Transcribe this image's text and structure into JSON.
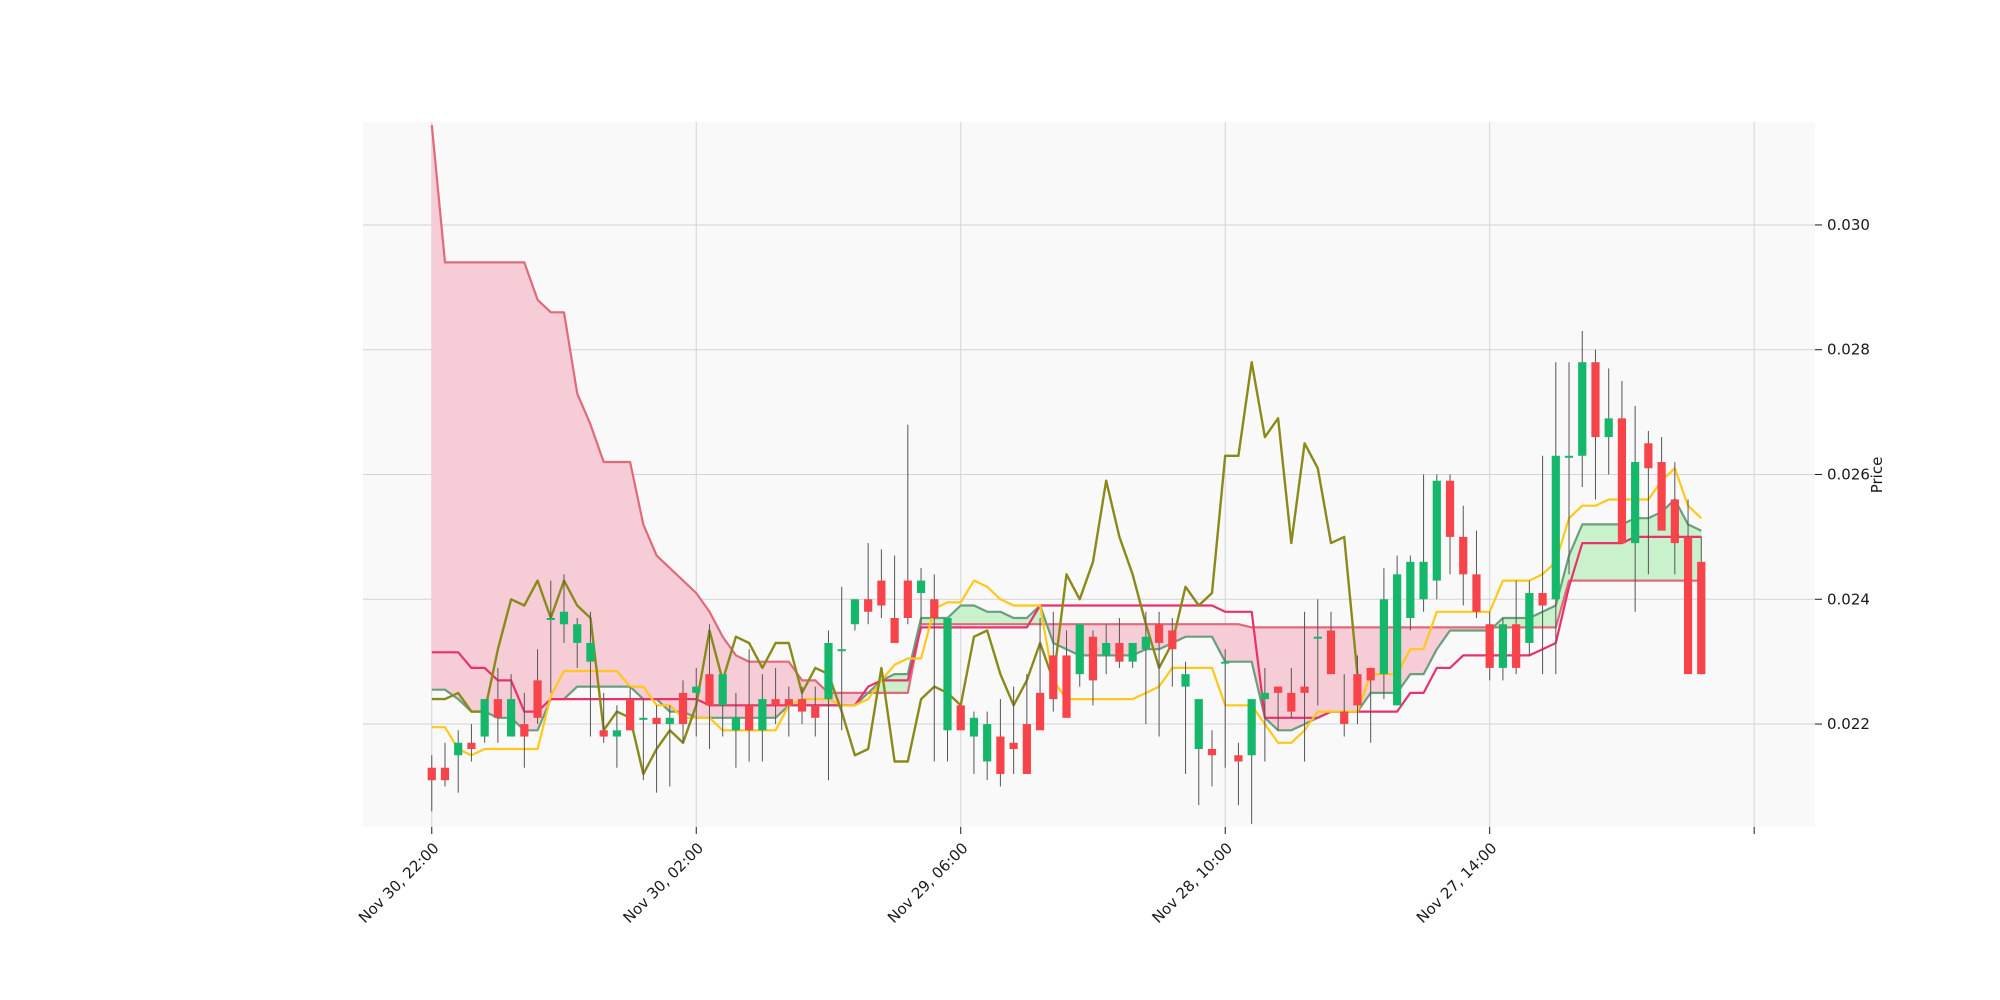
{
  "chart_data": {
    "type": "candlestick",
    "ylabel": "Price",
    "xlabel": "",
    "ylim": [
      0.02035,
      0.03165
    ],
    "y_ticks": [
      0.022,
      0.024,
      0.026,
      0.028,
      0.03
    ],
    "y_tick_labels": [
      "0.022",
      "0.024",
      "0.026",
      "0.028",
      "0.030"
    ],
    "x_ticks": [
      0,
      20,
      40,
      60,
      80
    ],
    "x_tick_labels": [
      "Nov 30, 22:00",
      "Nov 30, 02:00",
      "Nov 29, 06:00",
      "Nov 28, 10:00",
      "Nov 27, 14:00"
    ],
    "xlim": [
      -5.2,
      104.6
    ],
    "grid": true,
    "colors": {
      "background": "#f9f9f9",
      "grid": "#d4d4d4",
      "up": "#15b86a",
      "down": "#f7434a",
      "cloud_bull_fill": "#c9f2cc",
      "cloud_bear_fill": "#f6cdd6",
      "span_a": "#6a9e7c",
      "span_b": "#e06a7a",
      "tenkan": "#ffc81a",
      "kijun": "#e8326a",
      "chikou": "#8a8a1a"
    },
    "opens": [
      0.0213,
      0.0213,
      0.0215,
      0.0217,
      0.0218,
      0.0224,
      0.0218,
      0.022,
      0.0227,
      0.0237,
      0.0236,
      0.0233,
      0.023,
      0.0219,
      0.0218,
      0.0224,
      0.0221,
      0.0221,
      0.022,
      0.0225,
      0.0225,
      0.0228,
      0.0223,
      0.0219,
      0.0223,
      0.0219,
      0.0224,
      0.0224,
      0.0224,
      0.0223,
      0.0224,
      0.0232,
      0.0236,
      0.024,
      0.0243,
      0.0237,
      0.0243,
      0.0241,
      0.024,
      0.0219,
      0.0223,
      0.0218,
      0.0214,
      0.0218,
      0.0217,
      0.022,
      0.0225,
      0.0231,
      0.0231,
      0.0228,
      0.0234,
      0.0231,
      0.0233,
      0.023,
      0.0232,
      0.0236,
      0.0235,
      0.0226,
      0.0216,
      0.0216,
      0.023,
      0.0215,
      0.0215,
      0.0224,
      0.0226,
      0.0225,
      0.0226,
      0.0234,
      0.0235,
      0.0222,
      0.0228,
      0.0229,
      0.0228,
      0.0223,
      0.0237,
      0.024,
      0.0243,
      0.0259,
      0.025,
      0.0244,
      0.0236,
      0.0229,
      0.0236,
      0.0233,
      0.0241,
      0.024,
      0.0263,
      0.0263,
      0.0278,
      0.0266,
      0.0269,
      0.0249,
      0.0265,
      0.0262,
      0.0256,
      0.025,
      0.0246
    ],
    "highs": [
      0.0215,
      0.0217,
      0.0219,
      0.022,
      0.0224,
      0.0229,
      0.0228,
      0.0225,
      0.0232,
      0.0243,
      0.0244,
      0.0237,
      0.0238,
      0.0225,
      0.0223,
      0.0226,
      0.0224,
      0.0223,
      0.0223,
      0.0227,
      0.0229,
      0.0236,
      0.0226,
      0.0225,
      0.0232,
      0.0228,
      0.0229,
      0.0226,
      0.0226,
      0.0226,
      0.0235,
      0.0242,
      0.024,
      0.0249,
      0.0248,
      0.0247,
      0.0268,
      0.0245,
      0.0244,
      0.0228,
      0.0222,
      0.0222,
      0.0222,
      0.0224,
      0.0226,
      0.0228,
      0.0237,
      0.0238,
      0.0235,
      0.0234,
      0.0235,
      0.0236,
      0.0237,
      0.0232,
      0.0238,
      0.0238,
      0.0237,
      0.023,
      0.0222,
      0.0219,
      0.0232,
      0.0217,
      0.0219,
      0.0229,
      0.0226,
      0.0229,
      0.0238,
      0.024,
      0.0238,
      0.0228,
      0.0231,
      0.0229,
      0.0245,
      0.0247,
      0.0247,
      0.026,
      0.026,
      0.026,
      0.0255,
      0.0251,
      0.0238,
      0.0237,
      0.0243,
      0.0243,
      0.0263,
      0.0278,
      0.0278,
      0.0283,
      0.028,
      0.0277,
      0.0275,
      0.0271,
      0.0267,
      0.0266,
      0.0262,
      0.0256,
      0.025
    ],
    "lows": [
      0.0206,
      0.021,
      0.0209,
      0.0214,
      0.0217,
      0.0217,
      0.0218,
      0.0213,
      0.022,
      0.0225,
      0.0233,
      0.0229,
      0.0218,
      0.0217,
      0.0213,
      0.0219,
      0.0211,
      0.0209,
      0.021,
      0.0217,
      0.0218,
      0.0216,
      0.0218,
      0.0213,
      0.0214,
      0.0214,
      0.022,
      0.0218,
      0.022,
      0.0218,
      0.0211,
      0.0219,
      0.0235,
      0.0236,
      0.0237,
      0.0236,
      0.0236,
      0.0236,
      0.0214,
      0.0214,
      0.022,
      0.0212,
      0.0211,
      0.021,
      0.0212,
      0.0212,
      0.0222,
      0.0222,
      0.0226,
      0.0226,
      0.0223,
      0.0228,
      0.0229,
      0.0229,
      0.022,
      0.0218,
      0.0226,
      0.0212,
      0.0207,
      0.021,
      0.0213,
      0.0207,
      0.0204,
      0.0214,
      0.0219,
      0.0221,
      0.0214,
      0.0223,
      0.023,
      0.0218,
      0.022,
      0.0217,
      0.0224,
      0.0223,
      0.0235,
      0.0238,
      0.024,
      0.0244,
      0.0239,
      0.0237,
      0.0227,
      0.0227,
      0.0228,
      0.0231,
      0.0228,
      0.0228,
      0.0244,
      0.0258,
      0.0256,
      0.026,
      0.0264,
      0.0238,
      0.0244,
      0.0256,
      0.0244,
      0.024,
      0.0228
    ],
    "closes": [
      0.0211,
      0.0211,
      0.0217,
      0.0216,
      0.0224,
      0.0221,
      0.0224,
      0.0218,
      0.0221,
      0.0237,
      0.0238,
      0.0236,
      0.0233,
      0.0218,
      0.0219,
      0.0219,
      0.0221,
      0.022,
      0.0221,
      0.022,
      0.0226,
      0.0223,
      0.0228,
      0.0221,
      0.0219,
      0.0224,
      0.0223,
      0.0223,
      0.0222,
      0.0221,
      0.0233,
      0.0232,
      0.024,
      0.0238,
      0.0239,
      0.0233,
      0.0237,
      0.0243,
      0.0237,
      0.0237,
      0.0219,
      0.0221,
      0.022,
      0.0212,
      0.0216,
      0.0212,
      0.0219,
      0.0224,
      0.0221,
      0.0236,
      0.0227,
      0.0233,
      0.023,
      0.0233,
      0.0234,
      0.0233,
      0.0232,
      0.0228,
      0.0224,
      0.0215,
      0.023,
      0.0214,
      0.0224,
      0.0225,
      0.0225,
      0.0222,
      0.0225,
      0.0234,
      0.0228,
      0.022,
      0.0223,
      0.0227,
      0.024,
      0.0244,
      0.0246,
      0.0246,
      0.0259,
      0.025,
      0.0244,
      0.0238,
      0.0229,
      0.0236,
      0.0229,
      0.0241,
      0.0239,
      0.0263,
      0.0263,
      0.0278,
      0.0266,
      0.0269,
      0.0249,
      0.0262,
      0.0261,
      0.0251,
      0.0249,
      0.0228,
      0.0228
    ],
    "tenkan": [
      0.02195,
      0.02195,
      0.0216,
      0.0215,
      0.0216,
      0.0216,
      0.0216,
      0.0216,
      0.0216,
      0.02245,
      0.02285,
      0.02285,
      0.02285,
      0.02285,
      0.02285,
      0.0226,
      0.0226,
      0.0223,
      0.0223,
      0.0221,
      0.0221,
      0.0221,
      0.0219,
      0.0219,
      0.0219,
      0.0219,
      0.0219,
      0.0223,
      0.0224,
      0.0224,
      0.0224,
      0.0223,
      0.0223,
      0.0224,
      0.0227,
      0.02295,
      0.02305,
      0.02305,
      0.02385,
      0.02395,
      0.02395,
      0.0243,
      0.0242,
      0.024,
      0.0239,
      0.0239,
      0.0239,
      0.0227,
      0.0224,
      0.0224,
      0.0224,
      0.0224,
      0.0224,
      0.0224,
      0.0225,
      0.0226,
      0.0229,
      0.0229,
      0.0229,
      0.0229,
      0.0223,
      0.0223,
      0.0223,
      0.022,
      0.0217,
      0.0217,
      0.0219,
      0.0222,
      0.0222,
      0.0222,
      0.0222,
      0.0228,
      0.0228,
      0.0228,
      0.0232,
      0.0232,
      0.0238,
      0.0238,
      0.0238,
      0.0238,
      0.0238,
      0.0243,
      0.0243,
      0.0243,
      0.0244,
      0.0246,
      0.0253,
      0.0255,
      0.0255,
      0.0256,
      0.0256,
      0.0256,
      0.0256,
      0.0259,
      0.0261,
      0.0255,
      0.0253
    ],
    "kijun": [
      0.02315,
      0.02315,
      0.02315,
      0.0229,
      0.0229,
      0.0227,
      0.0227,
      0.0222,
      0.0222,
      0.0224,
      0.0224,
      0.0224,
      0.0224,
      0.0224,
      0.0224,
      0.0224,
      0.0224,
      0.0224,
      0.0224,
      0.0224,
      0.0224,
      0.0223,
      0.0223,
      0.0223,
      0.0223,
      0.0223,
      0.0223,
      0.0223,
      0.0223,
      0.0223,
      0.0223,
      0.0223,
      0.0223,
      0.0226,
      0.0227,
      0.0227,
      0.0227,
      0.02355,
      0.02355,
      0.02355,
      0.02355,
      0.02355,
      0.02355,
      0.02355,
      0.02355,
      0.02355,
      0.0239,
      0.0239,
      0.0239,
      0.0239,
      0.0239,
      0.0239,
      0.0239,
      0.0239,
      0.0239,
      0.0239,
      0.0239,
      0.0239,
      0.0239,
      0.0239,
      0.0238,
      0.0238,
      0.0238,
      0.0221,
      0.0221,
      0.0221,
      0.0221,
      0.0221,
      0.0222,
      0.0222,
      0.0222,
      0.0222,
      0.0222,
      0.0222,
      0.0225,
      0.0225,
      0.0229,
      0.0229,
      0.0231,
      0.0231,
      0.0231,
      0.0231,
      0.0231,
      0.0231,
      0.0232,
      0.0233,
      0.0242,
      0.0249,
      0.0249,
      0.0249,
      0.0249,
      0.025,
      0.025,
      0.025,
      0.025,
      0.025,
      0.025
    ],
    "span_a": [
      0.02255,
      0.02255,
      0.0224,
      0.0222,
      0.0222,
      0.0221,
      0.0221,
      0.0219,
      0.0219,
      0.0224,
      0.0224,
      0.0226,
      0.0226,
      0.0226,
      0.0226,
      0.0226,
      0.0224,
      0.0224,
      0.0222,
      0.0222,
      0.0221,
      0.0221,
      0.0221,
      0.0221,
      0.0221,
      0.0221,
      0.0221,
      0.0223,
      0.0223,
      0.0223,
      0.0223,
      0.0223,
      0.0223,
      0.0225,
      0.0227,
      0.0228,
      0.0228,
      0.0237,
      0.0237,
      0.0237,
      0.0239,
      0.0239,
      0.0238,
      0.0238,
      0.0237,
      0.0237,
      0.0239,
      0.0233,
      0.0232,
      0.0231,
      0.0231,
      0.0231,
      0.0231,
      0.0231,
      0.0232,
      0.0232,
      0.0233,
      0.0234,
      0.0234,
      0.0234,
      0.023,
      0.023,
      0.023,
      0.0221,
      0.0219,
      0.0219,
      0.022,
      0.0221,
      0.0222,
      0.0222,
      0.0222,
      0.0225,
      0.0225,
      0.0225,
      0.0228,
      0.0228,
      0.0232,
      0.0235,
      0.0235,
      0.0235,
      0.0235,
      0.0237,
      0.0237,
      0.0237,
      0.0238,
      0.0239,
      0.0247,
      0.0252,
      0.0252,
      0.0252,
      0.0252,
      0.0253,
      0.0253,
      0.0254,
      0.0256,
      0.0252,
      0.0251
    ],
    "span_b": [
      0.0316,
      0.0294,
      0.0294,
      0.0294,
      0.0294,
      0.0294,
      0.0294,
      0.0294,
      0.0288,
      0.0286,
      0.0286,
      0.0273,
      0.0268,
      0.0262,
      0.0262,
      0.0262,
      0.0252,
      0.0247,
      0.0245,
      0.0243,
      0.0241,
      0.0238,
      0.0234,
      0.0231,
      0.023,
      0.023,
      0.023,
      0.023,
      0.0227,
      0.0227,
      0.0225,
      0.0225,
      0.0225,
      0.0225,
      0.0225,
      0.0225,
      0.0225,
      0.0236,
      0.0236,
      0.0236,
      0.0236,
      0.0236,
      0.0236,
      0.0236,
      0.0236,
      0.0236,
      0.0236,
      0.0236,
      0.0236,
      0.0236,
      0.0236,
      0.0236,
      0.0236,
      0.0236,
      0.0236,
      0.0236,
      0.0236,
      0.0236,
      0.0236,
      0.0236,
      0.0236,
      0.0236,
      0.02355,
      0.02355,
      0.02355,
      0.02355,
      0.02355,
      0.02355,
      0.02355,
      0.02355,
      0.02355,
      0.02355,
      0.02355,
      0.02355,
      0.02355,
      0.02355,
      0.02355,
      0.02355,
      0.02355,
      0.02355,
      0.02355,
      0.02355,
      0.02355,
      0.02355,
      0.02355,
      0.02355,
      0.0243,
      0.0243,
      0.0243,
      0.0243,
      0.0243,
      0.0243,
      0.0243,
      0.0243,
      0.0243,
      0.0243,
      0.0243
    ],
    "chikou": [
      0.0224,
      0.0224,
      0.0225,
      0.0222,
      0.0222,
      0.0232,
      0.024,
      0.0239,
      0.0243,
      0.0237,
      0.0243,
      0.0239,
      0.0237,
      0.0219,
      0.0222,
      0.0221,
      0.0212,
      0.0216,
      0.0219,
      0.0217,
      0.0223,
      0.0235,
      0.0227,
      0.0234,
      0.0233,
      0.0229,
      0.0233,
      0.0233,
      0.0225,
      0.0229,
      0.0228,
      0.0222,
      0.0215,
      0.0216,
      0.0229,
      0.0214,
      0.0214,
      0.0224,
      0.0226,
      0.0225,
      0.0223,
      0.0234,
      0.0235,
      0.0228,
      0.0223,
      0.0227,
      0.0233,
      0.0227,
      0.0244,
      0.024,
      0.0246,
      0.0259,
      0.025,
      0.0244,
      0.0236,
      0.0229,
      0.0233,
      0.0242,
      0.0239,
      0.0241,
      0.0263,
      0.0263,
      0.0278,
      0.0266,
      0.0269,
      0.0249,
      0.0265,
      0.0261,
      0.0249,
      0.025,
      0.0228
    ]
  }
}
